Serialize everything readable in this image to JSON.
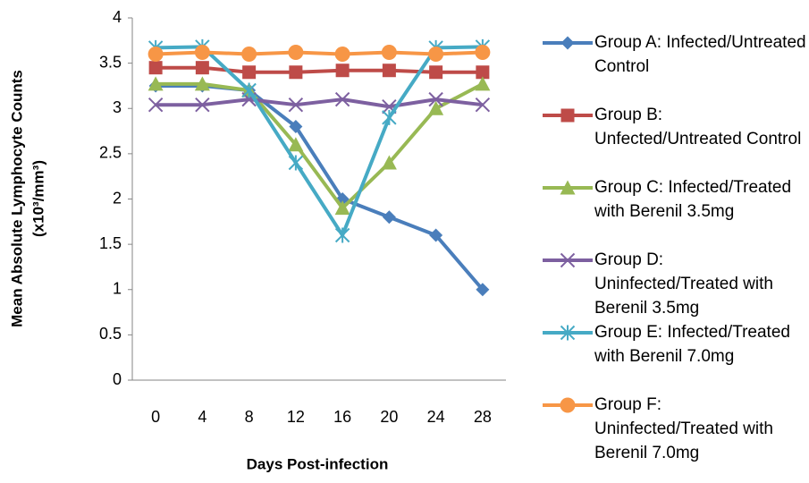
{
  "chart_data": {
    "type": "line",
    "x_label": "Days Post-infection",
    "y_label": [
      "Mean Absolute Lymphocyte Counts",
      "(x10³/mm³)"
    ],
    "categories": [
      "0",
      "4",
      "8",
      "12",
      "16",
      "20",
      "24",
      "28"
    ],
    "ylim": [
      0,
      4
    ],
    "yticks": [
      0,
      0.5,
      1,
      1.5,
      2,
      2.5,
      3,
      3.5,
      4
    ],
    "grid": false,
    "series": [
      {
        "name": "Group A: Infected/Untreated Control",
        "color": "#4a7ebb",
        "marker": "diamond",
        "values": [
          3.25,
          3.25,
          3.2,
          2.8,
          2.0,
          1.8,
          1.6,
          1.0
        ]
      },
      {
        "name": "Group B: Unfected/Untreated Control",
        "color": "#be4b48",
        "marker": "square",
        "values": [
          3.45,
          3.45,
          3.4,
          3.4,
          3.42,
          3.42,
          3.4,
          3.4
        ]
      },
      {
        "name": "Group C: Infected/Treated with Berenil 3.5mg",
        "color": "#98b954",
        "marker": "triangle",
        "values": [
          3.27,
          3.27,
          3.2,
          2.6,
          1.9,
          2.4,
          3.0,
          3.27
        ]
      },
      {
        "name": "Group D: Uninfected/Treated with Berenil 3.5mg",
        "color": "#7d60a0",
        "marker": "x",
        "values": [
          3.04,
          3.04,
          3.1,
          3.04,
          3.1,
          3.02,
          3.1,
          3.04
        ]
      },
      {
        "name": "Group E: Infected/Treated with Berenil 7.0mg",
        "color": "#46aac5",
        "marker": "asterisk",
        "values": [
          3.67,
          3.68,
          3.2,
          2.4,
          1.6,
          2.9,
          3.67,
          3.68
        ]
      },
      {
        "name": "Group F: Uninfected/Treated with Berenil 7.0mg",
        "color": "#f79646",
        "marker": "circle",
        "values": [
          3.6,
          3.62,
          3.6,
          3.62,
          3.6,
          3.62,
          3.6,
          3.62
        ]
      }
    ]
  }
}
